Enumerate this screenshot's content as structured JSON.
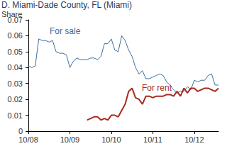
{
  "chart_data": {
    "type": "line",
    "title": "D. Miami-Dade County, FL (Miami)",
    "y_label": "Share",
    "categories": [
      "10/08",
      null,
      null,
      null,
      null,
      null,
      null,
      null,
      null,
      null,
      null,
      null,
      "10/09",
      null,
      null,
      null,
      null,
      null,
      null,
      null,
      null,
      null,
      null,
      null,
      "10/10",
      null,
      null,
      null,
      null,
      null,
      null,
      null,
      null,
      null,
      null,
      null,
      "10/11",
      null,
      null,
      null,
      null,
      null,
      null,
      null,
      null,
      null,
      null,
      null,
      "10/12",
      null,
      null,
      null,
      null,
      null,
      null,
      null
    ],
    "series": [
      {
        "name": "For sale",
        "color": "#3d6e99",
        "values": [
          0.041,
          0.04,
          0.041,
          0.058,
          0.057,
          0.057,
          0.056,
          0.057,
          0.05,
          0.049,
          0.049,
          0.048,
          0.04,
          0.044,
          0.046,
          0.045,
          0.045,
          0.045,
          0.046,
          0.046,
          0.045,
          0.047,
          0.055,
          0.055,
          0.058,
          0.051,
          0.05,
          0.06,
          0.057,
          0.051,
          0.047,
          0.04,
          0.036,
          0.038,
          0.033,
          0.033,
          0.034,
          0.035,
          0.036,
          0.035,
          0.031,
          0.029,
          0.026,
          0.024,
          0.025,
          0.025,
          0.028,
          0.026,
          0.032,
          0.031,
          0.032,
          0.032,
          0.035,
          0.036,
          0.029,
          0.029
        ]
      },
      {
        "name": "For rent",
        "color": "#a82a22",
        "values": [
          null,
          null,
          null,
          null,
          null,
          null,
          null,
          null,
          null,
          null,
          null,
          null,
          null,
          null,
          null,
          null,
          null,
          0.007,
          0.008,
          0.009,
          0.009,
          0.007,
          0.008,
          0.007,
          0.01,
          0.01,
          0.009,
          0.013,
          0.017,
          0.025,
          0.027,
          0.021,
          0.02,
          0.017,
          0.022,
          0.022,
          0.021,
          0.022,
          0.022,
          0.022,
          0.023,
          0.023,
          0.022,
          0.025,
          0.022,
          0.027,
          0.024,
          0.027,
          0.027,
          0.025,
          0.026,
          0.027,
          0.027,
          0.026,
          0.025,
          0.027
        ]
      }
    ],
    "ylim": [
      0,
      0.07
    ],
    "yticks": [
      0,
      0.01,
      0.02,
      0.03,
      0.04,
      0.05,
      0.06,
      0.07
    ],
    "grid": false
  }
}
